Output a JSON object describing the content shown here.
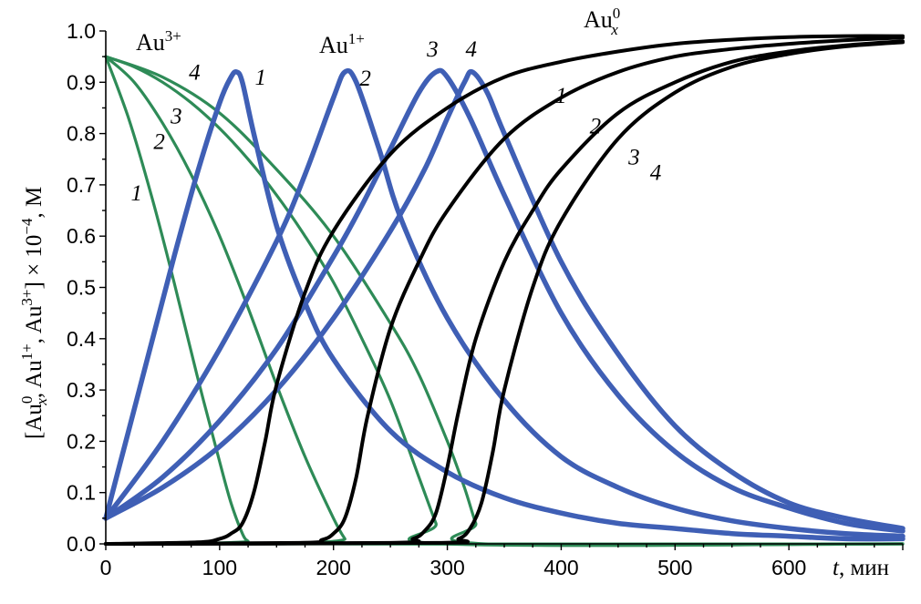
{
  "chart_data": {
    "type": "line",
    "title": "",
    "xlabel": {
      "var": "t",
      "unit": ", мин"
    },
    "ylabel": {
      "open": "[Au",
      "sub0": "x",
      "sup0": "0",
      "mid1": ", Au",
      "sup1": "1+",
      "mid2": ", Au",
      "sup2": "3+",
      "close": "] × 10",
      "exp": "−4",
      "unit": ", M"
    },
    "xlim": [
      0,
      700
    ],
    "ylim": [
      0,
      1.0
    ],
    "xticks": [
      "0",
      "100",
      "200",
      "300",
      "400",
      "500",
      "600"
    ],
    "xtick_values": [
      0,
      100,
      200,
      300,
      400,
      500,
      600
    ],
    "yticks": [
      "0.0",
      "0.1",
      "0.2",
      "0.3",
      "0.4",
      "0.5",
      "0.6",
      "0.7",
      "0.8",
      "0.9",
      "1.0"
    ],
    "ytick_values": [
      0,
      0.1,
      0.2,
      0.3,
      0.4,
      0.5,
      0.6,
      0.7,
      0.8,
      0.9,
      1.0
    ],
    "colors": {
      "Au3+": "#2e8b57",
      "Au1+": "#3f5fb5",
      "Au0": "#000000"
    },
    "series_labels": {
      "au3": {
        "base": "Au",
        "sup": "3+"
      },
      "au1": {
        "base": "Au",
        "sup": "1+"
      },
      "au0": {
        "base": "Au",
        "sub": "x",
        "sup": "0"
      }
    },
    "series": [
      {
        "group": "Au3+",
        "curve": "1",
        "x": [
          0,
          20,
          40,
          60,
          80,
          100,
          110,
          120,
          125,
          130,
          700
        ],
        "y": [
          0.95,
          0.83,
          0.68,
          0.51,
          0.33,
          0.16,
          0.08,
          0.02,
          0.005,
          0,
          0
        ]
      },
      {
        "group": "Au3+",
        "curve": "2",
        "x": [
          0,
          25,
          50,
          75,
          100,
          125,
          150,
          175,
          200,
          210,
          215,
          700
        ],
        "y": [
          0.95,
          0.9,
          0.82,
          0.72,
          0.6,
          0.46,
          0.31,
          0.17,
          0.05,
          0.01,
          0,
          0
        ]
      },
      {
        "group": "Au3+",
        "curve": "3",
        "x": [
          0,
          25,
          50,
          75,
          100,
          125,
          150,
          175,
          200,
          225,
          250,
          275,
          290,
          298,
          700
        ],
        "y": [
          0.95,
          0.93,
          0.9,
          0.86,
          0.81,
          0.75,
          0.68,
          0.6,
          0.51,
          0.4,
          0.28,
          0.13,
          0.04,
          0,
          0
        ]
      },
      {
        "group": "Au3+",
        "curve": "4",
        "x": [
          0,
          50,
          100,
          150,
          200,
          250,
          275,
          300,
          315,
          325,
          333,
          700
        ],
        "y": [
          0.95,
          0.91,
          0.84,
          0.73,
          0.6,
          0.43,
          0.33,
          0.2,
          0.11,
          0.04,
          0,
          0
        ]
      },
      {
        "group": "Au1+",
        "curve": "1",
        "x": [
          0,
          20,
          40,
          60,
          80,
          100,
          110,
          115,
          120,
          130,
          150,
          175,
          200,
          250,
          300,
          350,
          400,
          450,
          500,
          550,
          600,
          650,
          700
        ],
        "y": [
          0.05,
          0.22,
          0.39,
          0.56,
          0.72,
          0.86,
          0.91,
          0.92,
          0.9,
          0.8,
          0.62,
          0.47,
          0.36,
          0.22,
          0.14,
          0.09,
          0.06,
          0.04,
          0.03,
          0.02,
          0.015,
          0.01,
          0.01
        ]
      },
      {
        "group": "Au1+",
        "curve": "2",
        "x": [
          0,
          50,
          100,
          150,
          175,
          200,
          210,
          220,
          240,
          260,
          300,
          350,
          400,
          450,
          500,
          550,
          600,
          650,
          700
        ],
        "y": [
          0.05,
          0.2,
          0.38,
          0.59,
          0.72,
          0.87,
          0.92,
          0.9,
          0.77,
          0.63,
          0.44,
          0.28,
          0.17,
          0.11,
          0.07,
          0.045,
          0.03,
          0.02,
          0.015
        ]
      },
      {
        "group": "Au1+",
        "curve": "3",
        "x": [
          0,
          50,
          100,
          150,
          200,
          225,
          250,
          275,
          290,
          300,
          320,
          350,
          400,
          450,
          500,
          550,
          600,
          650,
          700
        ],
        "y": [
          0.05,
          0.13,
          0.24,
          0.38,
          0.56,
          0.66,
          0.77,
          0.88,
          0.92,
          0.91,
          0.83,
          0.68,
          0.45,
          0.29,
          0.18,
          0.11,
          0.07,
          0.04,
          0.025
        ]
      },
      {
        "group": "Au1+",
        "curve": "4",
        "x": [
          0,
          50,
          100,
          150,
          200,
          250,
          280,
          300,
          315,
          322,
          335,
          350,
          400,
          450,
          500,
          550,
          600,
          650,
          700
        ],
        "y": [
          0.05,
          0.11,
          0.19,
          0.3,
          0.44,
          0.61,
          0.73,
          0.83,
          0.9,
          0.92,
          0.88,
          0.8,
          0.55,
          0.37,
          0.23,
          0.14,
          0.08,
          0.05,
          0.03
        ]
      },
      {
        "group": "Au0",
        "curve": "1",
        "x": [
          0,
          80,
          100,
          110,
          120,
          130,
          140,
          150,
          175,
          200,
          250,
          300,
          350,
          400,
          450,
          500,
          550,
          600,
          650,
          700
        ],
        "y": [
          0,
          0.003,
          0.01,
          0.02,
          0.04,
          0.1,
          0.2,
          0.31,
          0.49,
          0.61,
          0.76,
          0.85,
          0.91,
          0.94,
          0.96,
          0.975,
          0.983,
          0.988,
          0.99,
          0.99
        ]
      },
      {
        "group": "Au0",
        "curve": "2",
        "x": [
          0,
          170,
          190,
          200,
          210,
          220,
          230,
          250,
          275,
          300,
          350,
          400,
          450,
          500,
          550,
          600,
          650,
          700
        ],
        "y": [
          0,
          0.002,
          0.008,
          0.02,
          0.05,
          0.13,
          0.25,
          0.42,
          0.55,
          0.65,
          0.79,
          0.87,
          0.92,
          0.95,
          0.965,
          0.975,
          0.982,
          0.987
        ]
      },
      {
        "group": "Au0",
        "curve": "3",
        "x": [
          0,
          250,
          270,
          280,
          290,
          300,
          310,
          325,
          350,
          375,
          400,
          450,
          500,
          550,
          600,
          650,
          700
        ],
        "y": [
          0,
          0.002,
          0.01,
          0.025,
          0.06,
          0.15,
          0.26,
          0.4,
          0.55,
          0.65,
          0.73,
          0.84,
          0.9,
          0.94,
          0.96,
          0.972,
          0.98
        ]
      },
      {
        "group": "Au0",
        "curve": "4",
        "x": [
          0,
          290,
          310,
          320,
          330,
          340,
          350,
          375,
          400,
          450,
          500,
          550,
          600,
          650,
          700
        ],
        "y": [
          0,
          0.002,
          0.01,
          0.03,
          0.08,
          0.18,
          0.3,
          0.5,
          0.63,
          0.79,
          0.88,
          0.93,
          0.955,
          0.97,
          0.978
        ]
      }
    ],
    "curve_labels": [
      {
        "text": "1",
        "x": 27,
        "y": 0.67
      },
      {
        "text": "2",
        "x": 47,
        "y": 0.77
      },
      {
        "text": "3",
        "x": 62,
        "y": 0.82
      },
      {
        "text": "4",
        "x": 78,
        "y": 0.905
      },
      {
        "text": "1",
        "x": 136,
        "y": 0.895
      },
      {
        "text": "2",
        "x": 228,
        "y": 0.893
      },
      {
        "text": "3",
        "x": 287,
        "y": 0.95
      },
      {
        "text": "4",
        "x": 321,
        "y": 0.95
      },
      {
        "text": "1",
        "x": 400,
        "y": 0.86
      },
      {
        "text": "2",
        "x": 430,
        "y": 0.8
      },
      {
        "text": "3",
        "x": 464,
        "y": 0.74
      },
      {
        "text": "4",
        "x": 483,
        "y": 0.71
      }
    ]
  }
}
